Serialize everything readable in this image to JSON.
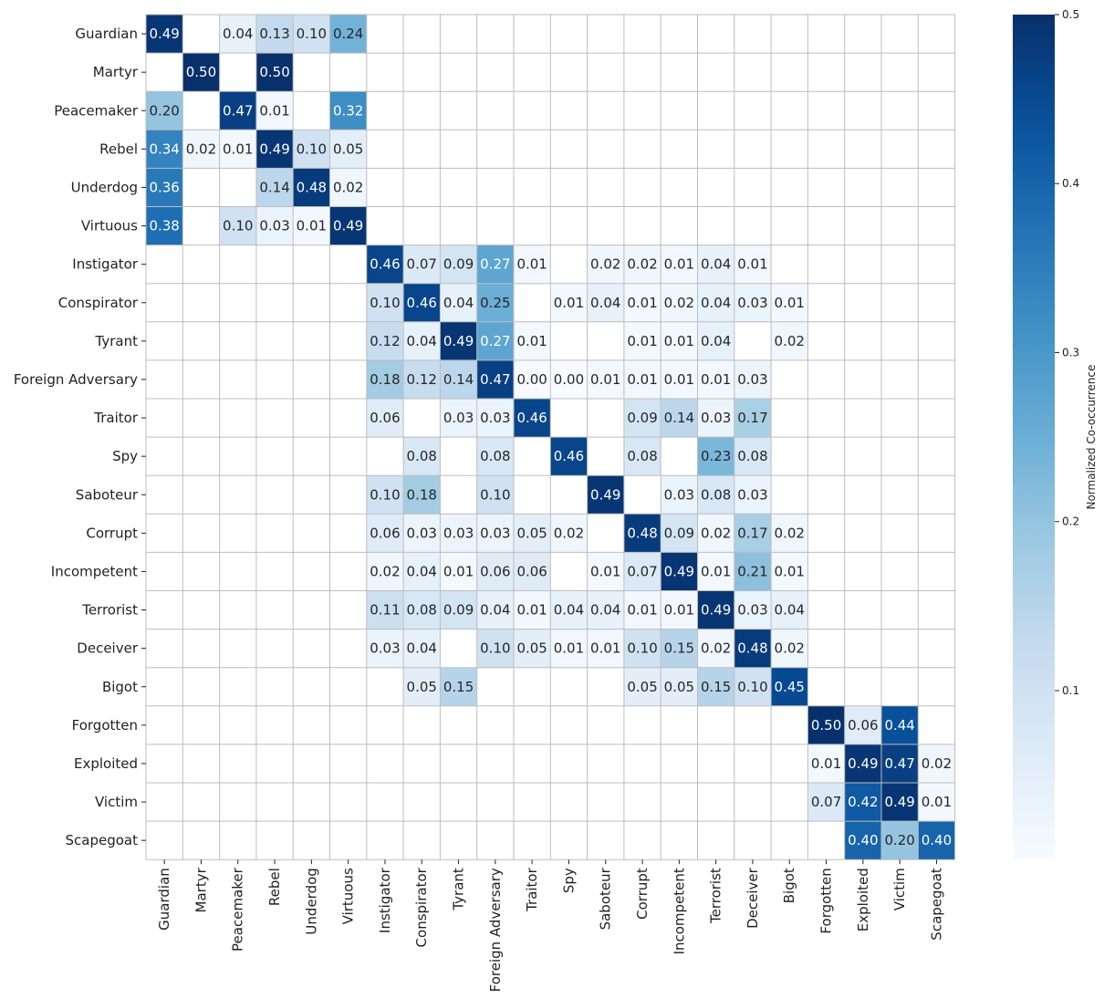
{
  "chart_data": {
    "type": "heatmap",
    "title": "",
    "xlabel": "",
    "ylabel": "",
    "rows": [
      "Guardian",
      "Martyr",
      "Peacemaker",
      "Rebel",
      "Underdog",
      "Virtuous",
      "Instigator",
      "Conspirator",
      "Tyrant",
      "Foreign Adversary",
      "Traitor",
      "Spy",
      "Saboteur",
      "Corrupt",
      "Incompetent",
      "Terrorist",
      "Deceiver",
      "Bigot",
      "Forgotten",
      "Exploited",
      "Victim",
      "Scapegoat"
    ],
    "columns": [
      "Guardian",
      "Martyr",
      "Peacemaker",
      "Rebel",
      "Underdog",
      "Virtuous",
      "Instigator",
      "Conspirator",
      "Tyrant",
      "Foreign Adversary",
      "Traitor",
      "Spy",
      "Saboteur",
      "Corrupt",
      "Incompetent",
      "Terrorist",
      "Deceiver",
      "Bigot",
      "Forgotten",
      "Exploited",
      "Victim",
      "Scapegoat"
    ],
    "values": [
      [
        0.49,
        null,
        0.04,
        0.13,
        0.1,
        0.24,
        null,
        null,
        null,
        null,
        null,
        null,
        null,
        null,
        null,
        null,
        null,
        null,
        null,
        null,
        null,
        null
      ],
      [
        null,
        0.5,
        null,
        0.5,
        null,
        null,
        null,
        null,
        null,
        null,
        null,
        null,
        null,
        null,
        null,
        null,
        null,
        null,
        null,
        null,
        null,
        null
      ],
      [
        0.2,
        null,
        0.47,
        0.01,
        null,
        0.32,
        null,
        null,
        null,
        null,
        null,
        null,
        null,
        null,
        null,
        null,
        null,
        null,
        null,
        null,
        null,
        null
      ],
      [
        0.34,
        0.02,
        0.01,
        0.49,
        0.1,
        0.05,
        null,
        null,
        null,
        null,
        null,
        null,
        null,
        null,
        null,
        null,
        null,
        null,
        null,
        null,
        null,
        null
      ],
      [
        0.36,
        null,
        null,
        0.14,
        0.48,
        0.02,
        null,
        null,
        null,
        null,
        null,
        null,
        null,
        null,
        null,
        null,
        null,
        null,
        null,
        null,
        null,
        null
      ],
      [
        0.38,
        null,
        0.1,
        0.03,
        0.01,
        0.49,
        null,
        null,
        null,
        null,
        null,
        null,
        null,
        null,
        null,
        null,
        null,
        null,
        null,
        null,
        null,
        null
      ],
      [
        null,
        null,
        null,
        null,
        null,
        null,
        0.46,
        0.07,
        0.09,
        0.27,
        0.01,
        null,
        0.02,
        0.02,
        0.01,
        0.04,
        0.01,
        null,
        null,
        null,
        null,
        null
      ],
      [
        null,
        null,
        null,
        null,
        null,
        null,
        0.1,
        0.46,
        0.04,
        0.25,
        null,
        0.01,
        0.04,
        0.01,
        0.02,
        0.04,
        0.03,
        0.01,
        null,
        null,
        null,
        null
      ],
      [
        null,
        null,
        null,
        null,
        null,
        null,
        0.12,
        0.04,
        0.49,
        0.27,
        0.01,
        null,
        null,
        0.01,
        0.01,
        0.04,
        null,
        0.02,
        null,
        null,
        null,
        null
      ],
      [
        null,
        null,
        null,
        null,
        null,
        null,
        0.18,
        0.12,
        0.14,
        0.47,
        0.0,
        0.0,
        0.01,
        0.01,
        0.01,
        0.01,
        0.03,
        null,
        null,
        null,
        null,
        null
      ],
      [
        null,
        null,
        null,
        null,
        null,
        null,
        0.06,
        null,
        0.03,
        0.03,
        0.46,
        null,
        null,
        0.09,
        0.14,
        0.03,
        0.17,
        null,
        null,
        null,
        null,
        null
      ],
      [
        null,
        null,
        null,
        null,
        null,
        null,
        null,
        0.08,
        null,
        0.08,
        null,
        0.46,
        null,
        0.08,
        null,
        0.23,
        0.08,
        null,
        null,
        null,
        null,
        null
      ],
      [
        null,
        null,
        null,
        null,
        null,
        null,
        0.1,
        0.18,
        null,
        0.1,
        null,
        null,
        0.49,
        null,
        0.03,
        0.08,
        0.03,
        null,
        null,
        null,
        null,
        null
      ],
      [
        null,
        null,
        null,
        null,
        null,
        null,
        0.06,
        0.03,
        0.03,
        0.03,
        0.05,
        0.02,
        null,
        0.48,
        0.09,
        0.02,
        0.17,
        0.02,
        null,
        null,
        null,
        null
      ],
      [
        null,
        null,
        null,
        null,
        null,
        null,
        0.02,
        0.04,
        0.01,
        0.06,
        0.06,
        null,
        0.01,
        0.07,
        0.49,
        0.01,
        0.21,
        0.01,
        null,
        null,
        null,
        null
      ],
      [
        null,
        null,
        null,
        null,
        null,
        null,
        0.11,
        0.08,
        0.09,
        0.04,
        0.01,
        0.04,
        0.04,
        0.01,
        0.01,
        0.49,
        0.03,
        0.04,
        null,
        null,
        null,
        null
      ],
      [
        null,
        null,
        null,
        null,
        null,
        null,
        0.03,
        0.04,
        null,
        0.1,
        0.05,
        0.01,
        0.01,
        0.1,
        0.15,
        0.02,
        0.48,
        0.02,
        null,
        null,
        null,
        null
      ],
      [
        null,
        null,
        null,
        null,
        null,
        null,
        null,
        0.05,
        0.15,
        null,
        null,
        null,
        null,
        0.05,
        0.05,
        0.15,
        0.1,
        0.45,
        null,
        null,
        null,
        null
      ],
      [
        null,
        null,
        null,
        null,
        null,
        null,
        null,
        null,
        null,
        null,
        null,
        null,
        null,
        null,
        null,
        null,
        null,
        null,
        0.5,
        0.06,
        0.44,
        null
      ],
      [
        null,
        null,
        null,
        null,
        null,
        null,
        null,
        null,
        null,
        null,
        null,
        null,
        null,
        null,
        null,
        null,
        null,
        null,
        0.01,
        0.49,
        0.47,
        0.02
      ],
      [
        null,
        null,
        null,
        null,
        null,
        null,
        null,
        null,
        null,
        null,
        null,
        null,
        null,
        null,
        null,
        null,
        null,
        null,
        0.07,
        0.42,
        0.49,
        0.01
      ],
      [
        null,
        null,
        null,
        null,
        null,
        null,
        null,
        null,
        null,
        null,
        null,
        null,
        null,
        null,
        null,
        null,
        null,
        null,
        null,
        0.4,
        0.2,
        0.4
      ]
    ],
    "value_format": "0.00",
    "colorbar": {
      "label": "Normalized Co-occurrence",
      "range": [
        0,
        0.5
      ],
      "ticks": [
        "0.1",
        "0.2",
        "0.3",
        "0.4",
        "0.5"
      ],
      "colormap": "Blues"
    },
    "grid": true
  }
}
